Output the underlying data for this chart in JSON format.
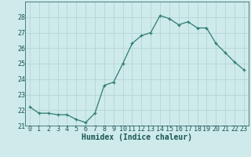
{
  "x": [
    0,
    1,
    2,
    3,
    4,
    5,
    6,
    7,
    8,
    9,
    10,
    11,
    12,
    13,
    14,
    15,
    16,
    17,
    18,
    19,
    20,
    21,
    22,
    23
  ],
  "y": [
    22.2,
    21.8,
    21.8,
    21.7,
    21.7,
    21.4,
    21.2,
    21.8,
    23.6,
    23.8,
    25.0,
    26.3,
    26.8,
    27.0,
    28.1,
    27.9,
    27.5,
    27.7,
    27.3,
    27.3,
    26.3,
    25.7,
    25.1,
    24.6
  ],
  "xlabel": "Humidex (Indice chaleur)",
  "ylabel": "",
  "ylim": [
    21,
    29
  ],
  "xlim": [
    -0.5,
    23.5
  ],
  "yticks": [
    21,
    22,
    23,
    24,
    25,
    26,
    27,
    28
  ],
  "xticks": [
    0,
    1,
    2,
    3,
    4,
    5,
    6,
    7,
    8,
    9,
    10,
    11,
    12,
    13,
    14,
    15,
    16,
    17,
    18,
    19,
    20,
    21,
    22,
    23
  ],
  "xtick_labels": [
    "0",
    "1",
    "2",
    "3",
    "4",
    "5",
    "6",
    "7",
    "8",
    "9",
    "10",
    "11",
    "12",
    "13",
    "14",
    "15",
    "16",
    "17",
    "18",
    "19",
    "20",
    "21",
    "22",
    "23"
  ],
  "line_color": "#2e7d6e",
  "marker": "+",
  "bg_color": "#ceeaea",
  "grid_color": "#b8d8d8",
  "label_fontsize": 7,
  "tick_fontsize": 6
}
